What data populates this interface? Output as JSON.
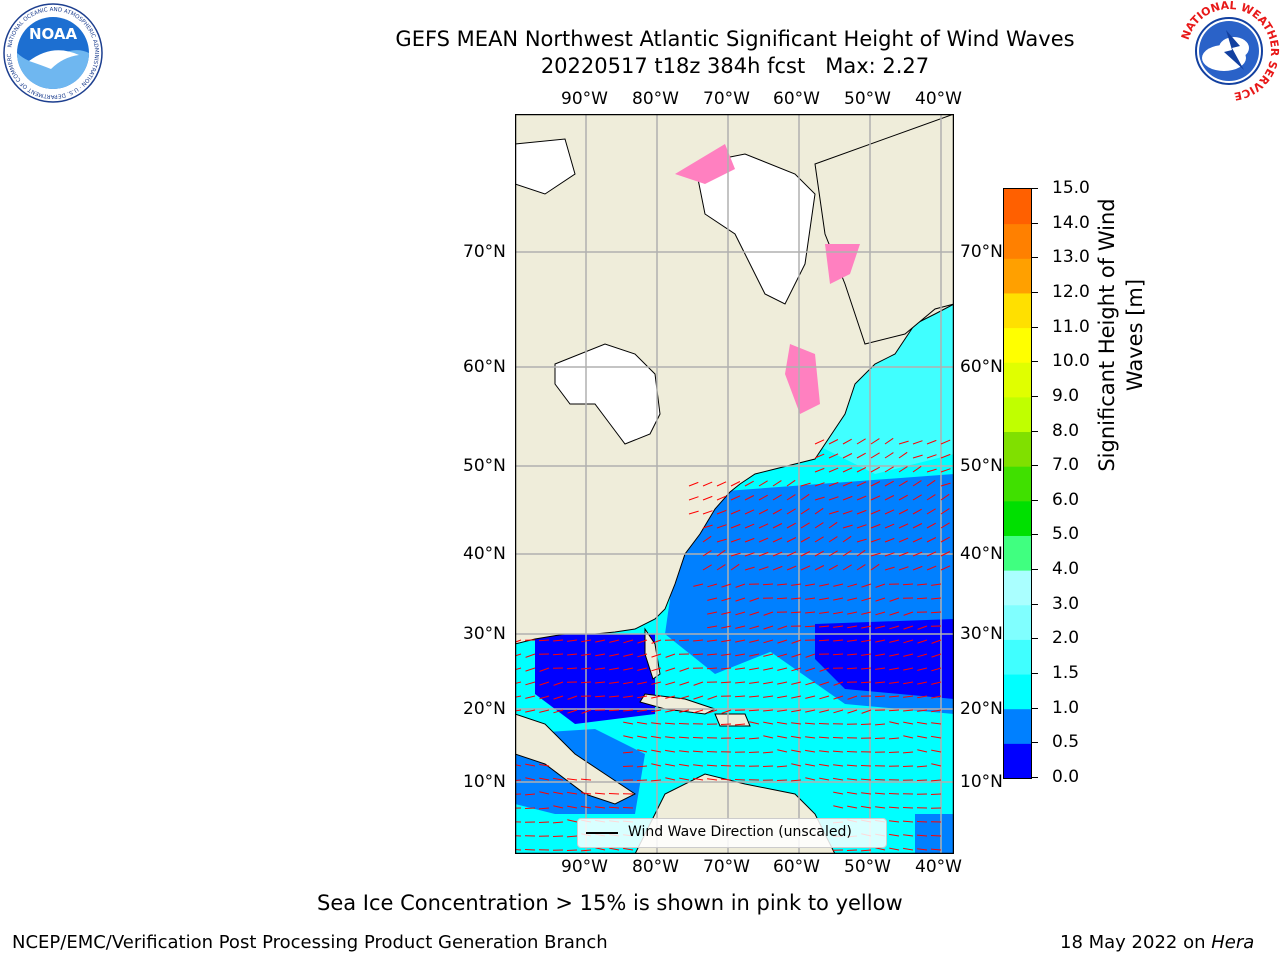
{
  "title": {
    "line1": "GEFS MEAN Northwest Atlantic Significant Height of Wind Waves",
    "line2": "20220517 t18z 384h fcst   Max: 2.27"
  },
  "map": {
    "lon_labels": [
      "90°W",
      "80°W",
      "70°W",
      "60°W",
      "50°W",
      "40°W"
    ],
    "lat_labels": [
      "70°N",
      "60°N",
      "50°N",
      "40°N",
      "30°N",
      "20°N",
      "10°N"
    ],
    "legend_label": "Wind Wave Direction (unscaled)",
    "colors": {
      "land": "#efedda",
      "ice_free_lake": "#ffffff",
      "ocean_low": "#0000ff",
      "ocean_mid": "#0080ff",
      "ocean_high": "#00ffff",
      "ice": "#ff80c0",
      "arrows": "#ff0000",
      "grid": "#b0b0b0"
    }
  },
  "colorbar": {
    "label": "Significant Height of Wind Waves [m]",
    "ticks": [
      "15.0",
      "14.0",
      "13.0",
      "12.0",
      "11.0",
      "10.0",
      "9.0",
      "8.0",
      "7.0",
      "6.0",
      "5.0",
      "4.0",
      "3.0",
      "2.0",
      "1.5",
      "1.0",
      "0.5",
      "0.0"
    ],
    "colors": [
      "#0000ff",
      "#0080ff",
      "#00ffff",
      "#40ffff",
      "#80ffff",
      "#aaffff",
      "#40ff80",
      "#00e000",
      "#40e000",
      "#80e000",
      "#c0ff00",
      "#e0ff00",
      "#ffff00",
      "#ffe000",
      "#ffa000",
      "#ff8000",
      "#ff6000",
      "#ff3000",
      "#ff0000"
    ]
  },
  "logos": {
    "noaa_text": "NOAA",
    "noaa_ring": "NATIONAL OCEANIC AND ATMOSPHERIC ADMINISTRATION · U.S. DEPARTMENT OF COMMERCE",
    "nws_ring": "NATIONAL WEATHER SERVICE"
  },
  "caption": "Sea Ice Concentration > 15% is shown in pink to yellow",
  "footer": {
    "left": "NCEP/EMC/Verification Post Processing Product Generation Branch",
    "right_prefix": "18 May 2022 on ",
    "right_host": "Hera"
  }
}
